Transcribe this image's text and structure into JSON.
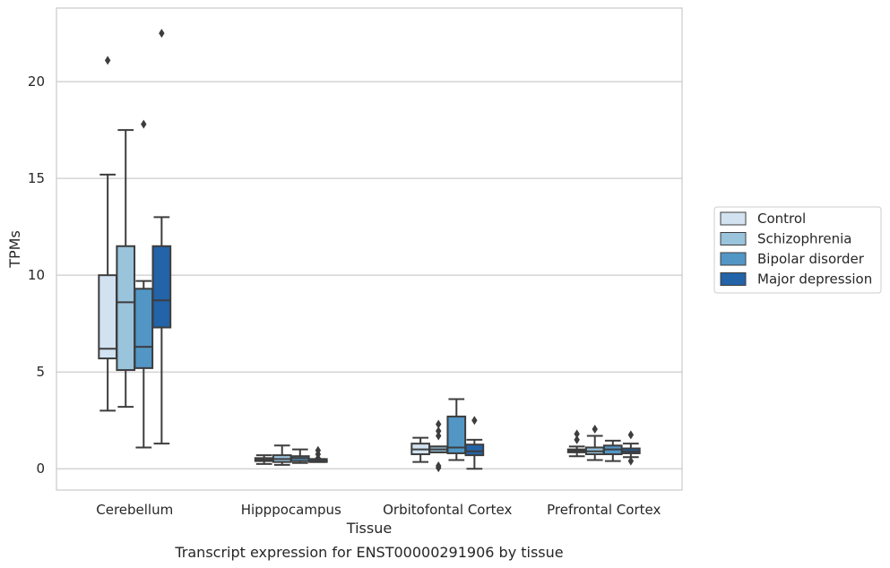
{
  "chart_data": {
    "type": "box",
    "title": "",
    "caption": "Transcript expression for ENST00000291906 by tissue",
    "xlabel": "Tissue",
    "ylabel": "TPMs",
    "ylim": [
      -1.1,
      23.8
    ],
    "yticks": [
      0,
      5,
      10,
      15,
      20
    ],
    "grid": "horizontal",
    "legend_position": "right",
    "categories": [
      "Cerebellum",
      "Hipppocampus",
      "Orbitofontal Cortex",
      "Prefrontal Cortex"
    ],
    "series": [
      {
        "name": "Control",
        "color": "#d2e2f1",
        "boxes": [
          {
            "whislo": 3.0,
            "q1": 5.7,
            "med": 6.2,
            "q3": 10.0,
            "whishi": 15.2,
            "fliers": [
              21.1
            ]
          },
          {
            "whislo": 0.25,
            "q1": 0.4,
            "med": 0.47,
            "q3": 0.55,
            "whishi": 0.7,
            "fliers": []
          },
          {
            "whislo": 0.35,
            "q1": 0.75,
            "med": 1.0,
            "q3": 1.3,
            "whishi": 1.6,
            "fliers": []
          },
          {
            "whislo": 0.65,
            "q1": 0.85,
            "med": 0.92,
            "q3": 1.0,
            "whishi": 1.15,
            "fliers": [
              1.5,
              1.8
            ]
          }
        ]
      },
      {
        "name": "Schizophrenia",
        "color": "#9ac3dc",
        "boxes": [
          {
            "whislo": 3.2,
            "q1": 5.1,
            "med": 8.6,
            "q3": 11.5,
            "whishi": 17.5,
            "fliers": []
          },
          {
            "whislo": 0.2,
            "q1": 0.35,
            "med": 0.5,
            "q3": 0.7,
            "whishi": 1.2,
            "fliers": []
          },
          {
            "whislo": 0.85,
            "q1": 0.85,
            "med": 1.0,
            "q3": 1.15,
            "whishi": 1.15,
            "fliers": [
              0.05,
              0.15,
              1.7,
              1.95,
              2.3
            ]
          },
          {
            "whislo": 0.45,
            "q1": 0.75,
            "med": 0.9,
            "q3": 1.1,
            "whishi": 1.7,
            "fliers": [
              2.05
            ]
          }
        ]
      },
      {
        "name": "Bipolar disorder",
        "color": "#5296c6",
        "boxes": [
          {
            "whislo": 1.1,
            "q1": 5.2,
            "med": 6.3,
            "q3": 9.3,
            "whishi": 9.7,
            "fliers": [
              17.8
            ]
          },
          {
            "whislo": 0.3,
            "q1": 0.4,
            "med": 0.55,
            "q3": 0.65,
            "whishi": 1.0,
            "fliers": []
          },
          {
            "whislo": 0.45,
            "q1": 0.8,
            "med": 1.1,
            "q3": 2.7,
            "whishi": 3.6,
            "fliers": []
          },
          {
            "whislo": 0.4,
            "q1": 0.75,
            "med": 1.0,
            "q3": 1.2,
            "whishi": 1.45,
            "fliers": []
          }
        ]
      },
      {
        "name": "Major depression",
        "color": "#2363a8",
        "boxes": [
          {
            "whislo": 1.3,
            "q1": 7.3,
            "med": 8.7,
            "q3": 11.5,
            "whishi": 13.0,
            "fliers": [
              22.5
            ]
          },
          {
            "whislo": 0.35,
            "q1": 0.35,
            "med": 0.4,
            "q3": 0.5,
            "whishi": 0.5,
            "fliers": [
              0.55,
              0.75,
              0.95
            ]
          },
          {
            "whislo": 0.0,
            "q1": 0.7,
            "med": 0.9,
            "q3": 1.25,
            "whishi": 1.5,
            "fliers": [
              2.5
            ]
          },
          {
            "whislo": 0.6,
            "q1": 0.8,
            "med": 0.9,
            "q3": 1.05,
            "whishi": 1.3,
            "fliers": [
              0.4,
              1.75
            ]
          }
        ]
      }
    ]
  }
}
